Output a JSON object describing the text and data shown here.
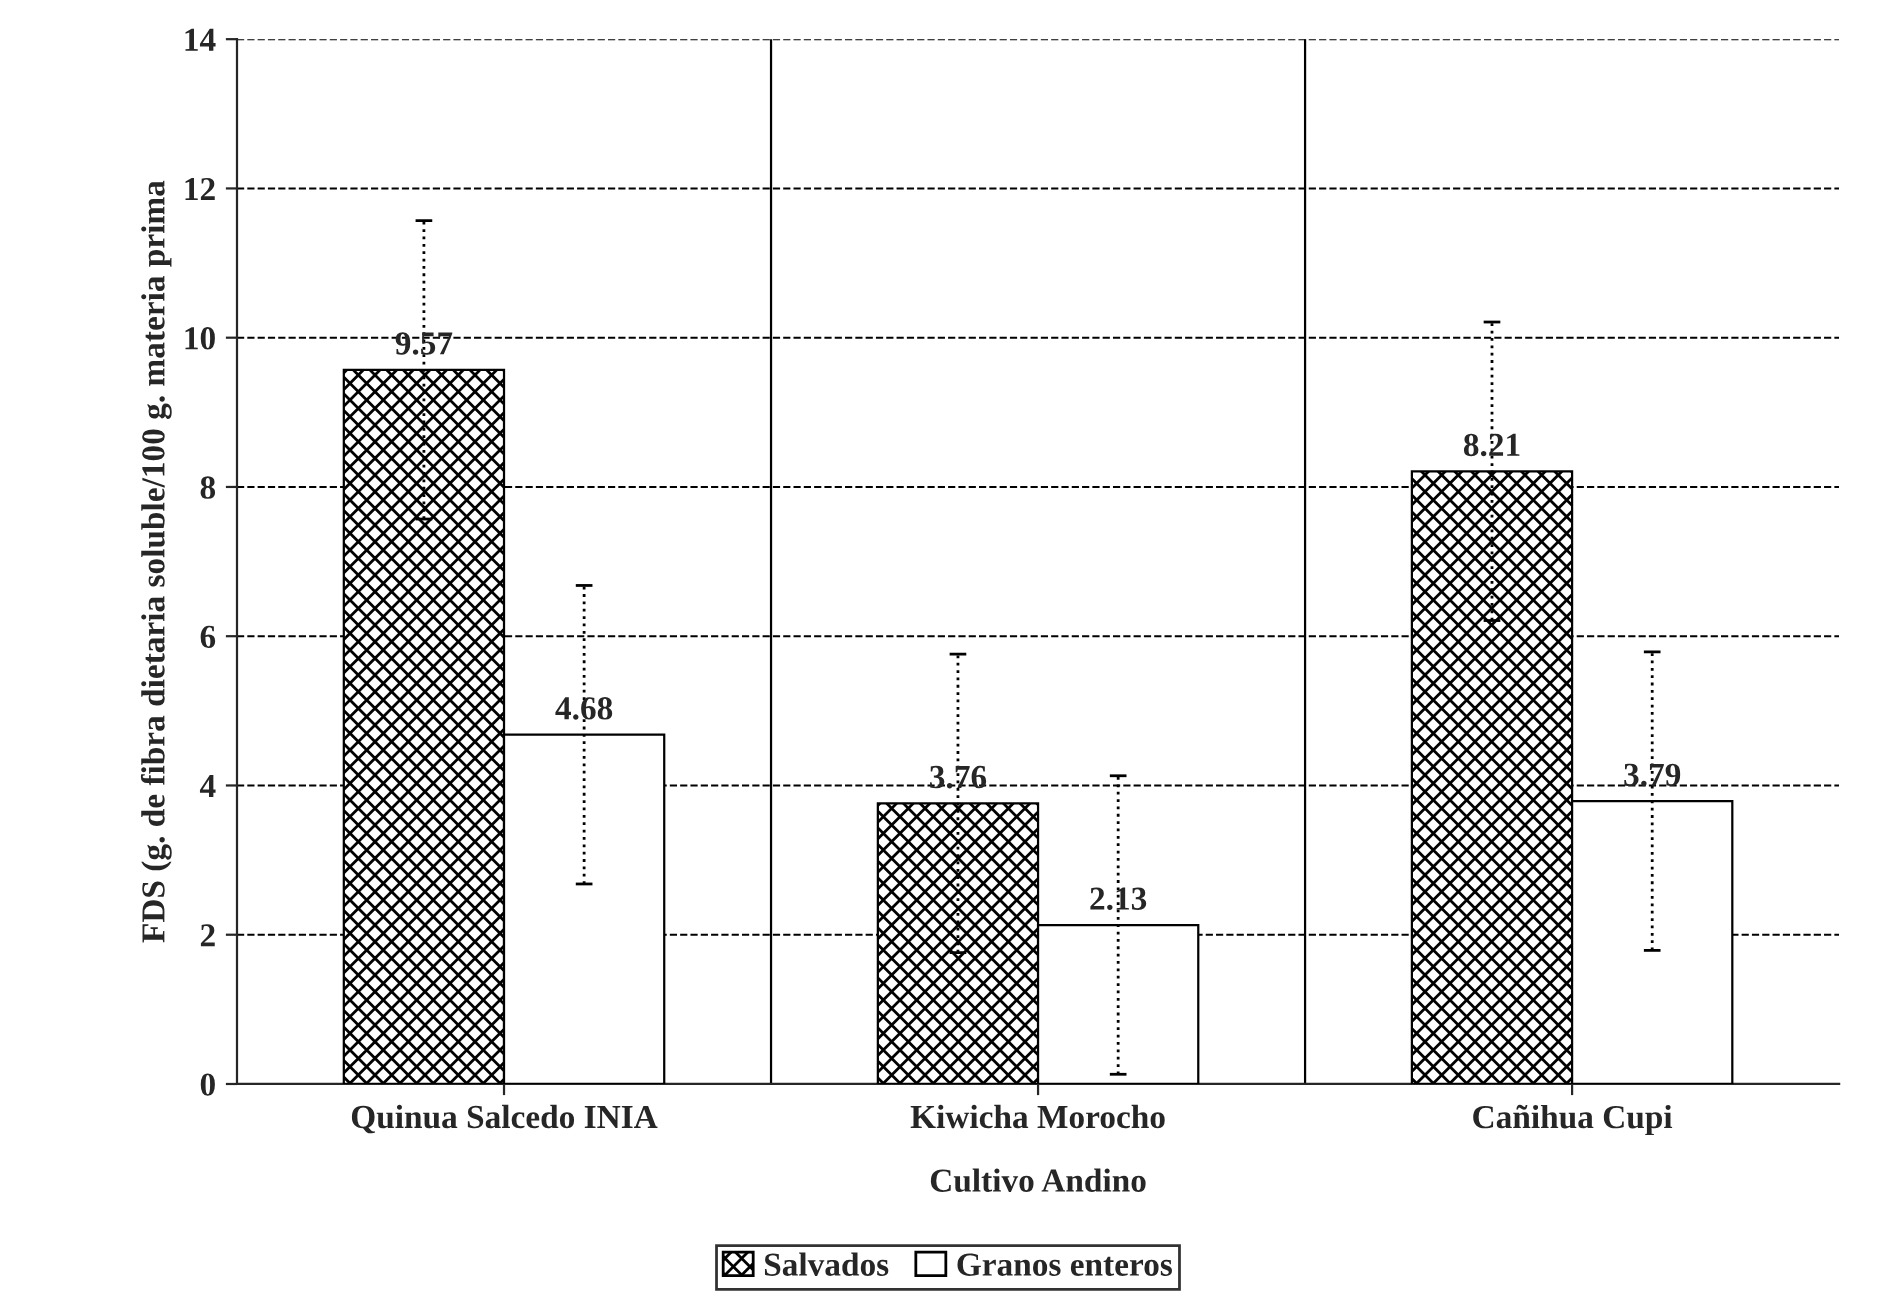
{
  "chart_data": {
    "type": "bar",
    "xlabel": "Cultivo Andino",
    "ylabel": "FDS (g. de fibra dietaria soluble/100 g. materia prima",
    "categories": [
      "Quinua Salcedo INIA",
      "Kiwicha Morocho",
      "Cañihua Cupi"
    ],
    "series": [
      {
        "name": "Salvados",
        "color": "#000000",
        "values": [
          9.57,
          3.76,
          8.21
        ],
        "errors": [
          2,
          2,
          2
        ]
      },
      {
        "name": "Granos enteros",
        "color": "#ffffff",
        "values": [
          4.68,
          2.13,
          3.79
        ],
        "errors": [
          2,
          2,
          2
        ]
      }
    ],
    "ylim": [
      0,
      14
    ],
    "yticks": [
      0,
      2,
      4,
      6,
      8,
      10,
      12,
      14
    ],
    "grid": true,
    "legend": "bottom",
    "data_labels": true
  }
}
